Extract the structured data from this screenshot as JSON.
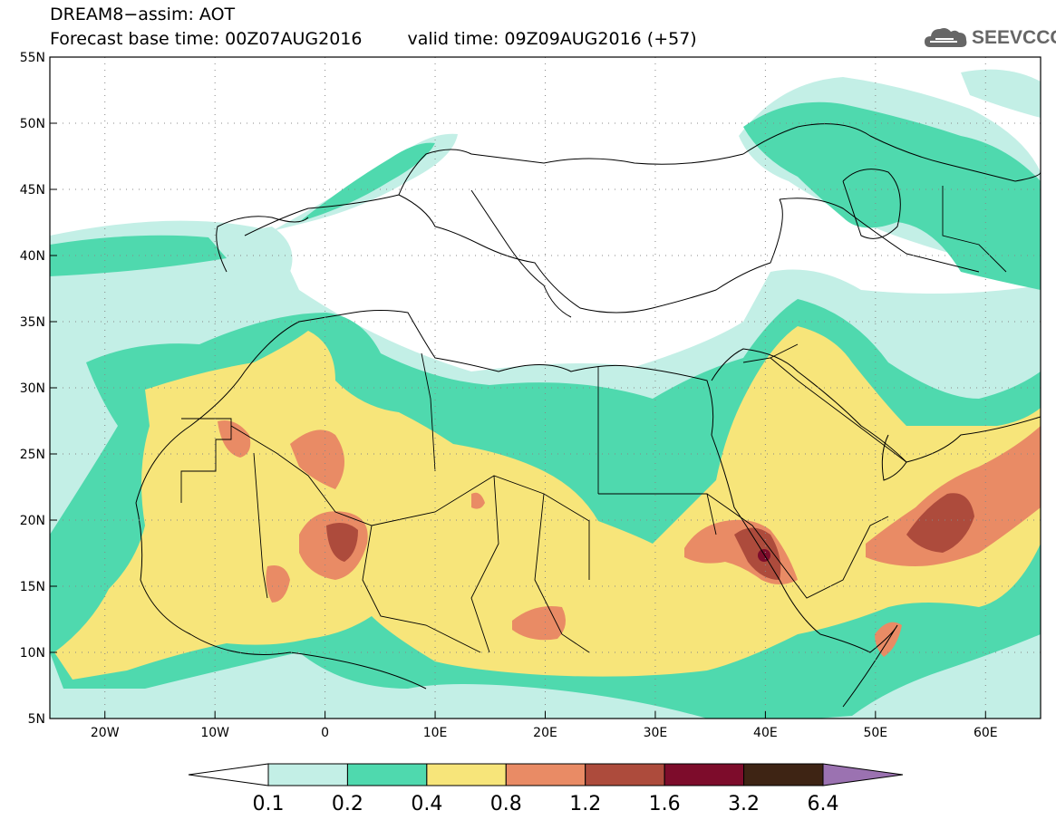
{
  "title": {
    "line1": "DREAM8−assim: AOT",
    "base_time": "Forecast base time: 00Z07AUG2016",
    "valid_time": "valid time: 09Z09AUG2016 (+57)"
  },
  "logo": {
    "text": "SEEVCCC",
    "icon": "cloud-icon"
  },
  "map": {
    "lat_labels": [
      "55N",
      "50N",
      "45N",
      "40N",
      "35N",
      "30N",
      "25N",
      "20N",
      "15N",
      "10N",
      "5N"
    ],
    "lat_values": [
      55,
      50,
      45,
      40,
      35,
      30,
      25,
      20,
      15,
      10,
      5
    ],
    "lon_labels": [
      "20W",
      "10W",
      "0",
      "10E",
      "20E",
      "30E",
      "40E",
      "50E",
      "60E"
    ],
    "lon_values": [
      -20,
      -10,
      0,
      10,
      20,
      30,
      40,
      50,
      60
    ],
    "extent": {
      "lon": [
        -25,
        65
      ],
      "lat": [
        5,
        55
      ]
    }
  },
  "colorbar": {
    "labels": [
      "0.1",
      "0.2",
      "0.4",
      "0.8",
      "1.2",
      "1.6",
      "3.2",
      "6.4"
    ],
    "colors": [
      "#ffffff",
      "#c3efe6",
      "#4fd9ae",
      "#f7e57a",
      "#e98b65",
      "#ad4b3c",
      "#7d0c2b",
      "#3e2414",
      "#9b72b1"
    ]
  }
}
